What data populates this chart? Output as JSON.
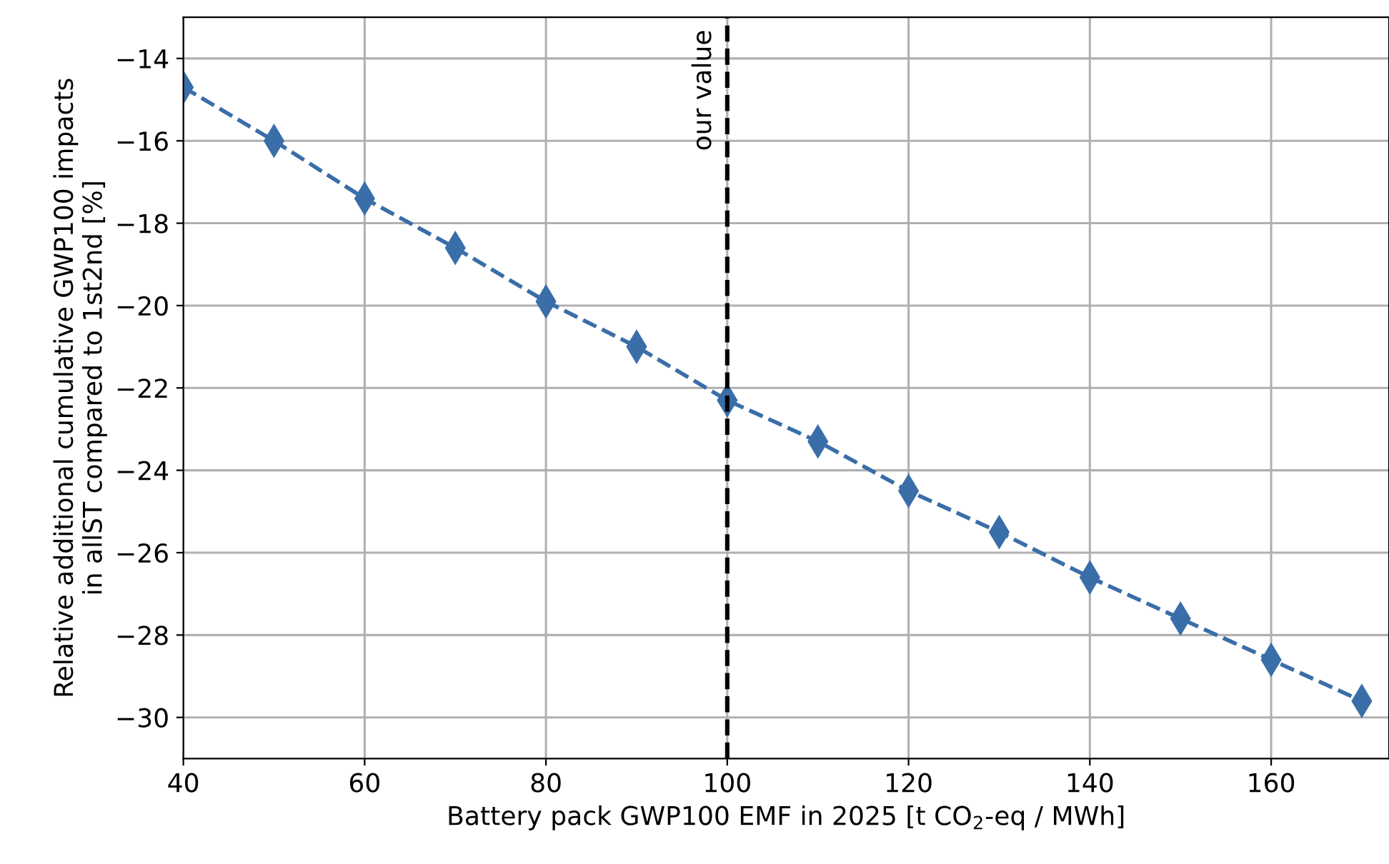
{
  "chart_data": {
    "type": "line",
    "xlabel": "Battery pack GWP100 EMF in 2025 [t CO$_{2}$-eq / MWh]",
    "ylabel": "Relative additional cumulative GWP100 impacts\nin allST compared to 1st2nd [%]",
    "x": [
      40,
      50,
      60,
      70,
      80,
      90,
      100,
      110,
      120,
      130,
      140,
      150,
      160,
      170
    ],
    "series": [
      {
        "color": "#3a6ea8",
        "values": [
          -14.7,
          -16.0,
          -17.4,
          -18.6,
          -19.9,
          -21.0,
          -22.3,
          -23.3,
          -24.5,
          -25.5,
          -26.6,
          -27.6,
          -28.6,
          -29.6
        ]
      }
    ],
    "marker": "diamond",
    "line_style": "dashed",
    "xlim": [
      40,
      173
    ],
    "ylim": [
      -31,
      -13
    ],
    "xticks": [
      40,
      60,
      80,
      100,
      120,
      140,
      160
    ],
    "yticks": [
      {
        "value": -14,
        "label": "−14"
      },
      {
        "value": -16,
        "label": "−16"
      },
      {
        "value": -18,
        "label": "−18"
      },
      {
        "value": -20,
        "label": "−20"
      },
      {
        "value": -22,
        "label": "−22"
      },
      {
        "value": -24,
        "label": "−24"
      },
      {
        "value": -26,
        "label": "−26"
      },
      {
        "value": -28,
        "label": "−28"
      },
      {
        "value": -30,
        "label": "−30"
      }
    ],
    "ref_lines": [
      {
        "axis": "x",
        "value": 100,
        "label": "our value",
        "color": "#000000",
        "line_style": "dashed"
      }
    ],
    "grid": true
  }
}
